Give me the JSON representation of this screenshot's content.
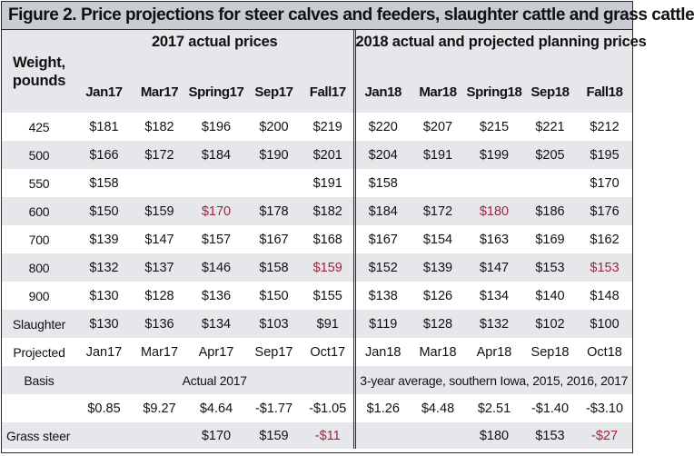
{
  "title": "Figure 2. Price projections for steer calves and feeders, slaughter cattle and grass cattle",
  "header": {
    "weight_label_line1": "Weight,",
    "weight_label_line2": "pounds",
    "group_2017": "2017 actual prices",
    "group_2018": "2018 actual and projected planning prices",
    "columns": [
      "Jan17",
      "Mar17",
      "Spring17",
      "Sep17",
      "Fall17",
      "Jan18",
      "Mar18",
      "Spring18",
      "Sep18",
      "Fall18"
    ]
  },
  "rows": [
    {
      "label": "425",
      "values": [
        "$181",
        "$182",
        "$196",
        "$200",
        "$219",
        "$220",
        "$207",
        "$215",
        "$221",
        "$212"
      ]
    },
    {
      "label": "500",
      "values": [
        "$166",
        "$172",
        "$184",
        "$190",
        "$201",
        "$204",
        "$191",
        "$199",
        "$205",
        "$195"
      ]
    },
    {
      "label": "550",
      "values": [
        "$158",
        "",
        "",
        "",
        "$191",
        "$158",
        "",
        "",
        "",
        "$170"
      ]
    },
    {
      "label": "600",
      "values": [
        "$150",
        "$159",
        "$170",
        "$178",
        "$182",
        "$184",
        "$172",
        "$180",
        "$186",
        "$176"
      ]
    },
    {
      "label": "700",
      "values": [
        "$139",
        "$147",
        "$157",
        "$167",
        "$168",
        "$167",
        "$154",
        "$163",
        "$169",
        "$162"
      ]
    },
    {
      "label": "800",
      "values": [
        "$132",
        "$137",
        "$146",
        "$158",
        "$159",
        "$152",
        "$139",
        "$147",
        "$153",
        "$153"
      ]
    },
    {
      "label": "900",
      "values": [
        "$130",
        "$128",
        "$136",
        "$150",
        "$155",
        "$138",
        "$126",
        "$134",
        "$140",
        "$148"
      ]
    },
    {
      "label": "Slaughter",
      "values": [
        "$130",
        "$136",
        "$134",
        "$103",
        "$91",
        "$119",
        "$128",
        "$132",
        "$102",
        "$100"
      ]
    },
    {
      "label": "Projected",
      "values": [
        "Jan17",
        "Mar17",
        "Apr17",
        "Sep17",
        "Oct17",
        "Jan18",
        "Mar18",
        "Apr18",
        "Sep18",
        "Oct18"
      ]
    }
  ],
  "basis": {
    "label": "Basis",
    "actual_2017": "Actual 2017",
    "avg_2018": "3-year average, southern Iowa, 2015, 2016, 2017",
    "values": [
      "$0.85",
      "$9.27",
      "$4.64",
      "-$1.77",
      "-$1.05",
      "$1.26",
      "$4.48",
      "$2.51",
      "-$1.40",
      "-$3.10"
    ]
  },
  "grass": {
    "label": "Grass steer",
    "values": [
      "",
      "",
      "$170",
      "$159",
      "-$11",
      "",
      "",
      "$180",
      "$153",
      "-$27"
    ]
  },
  "colors": {
    "highlight": "#a0243e",
    "shade": "#e6e7ea",
    "title_bar": "#c9ccd3"
  }
}
